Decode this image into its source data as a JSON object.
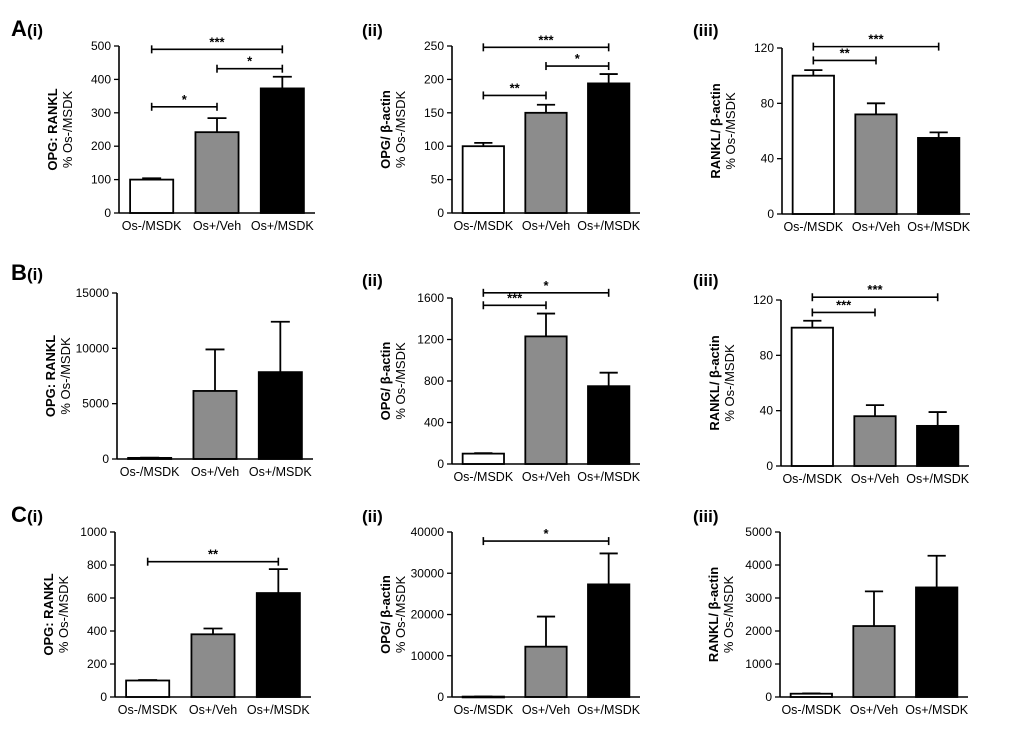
{
  "figure": {
    "row_labels": [
      "A",
      "B",
      "C"
    ],
    "colors": {
      "Os-/MSDK": "#ffffff",
      "Os+/Veh": "#8c8c8c",
      "Os+/MSDK": "#000000"
    }
  },
  "chart_data": [
    {
      "type": "bar",
      "row": "A",
      "panel_label": "(i)",
      "ylabel_bold": "OPG: RANKL",
      "ylabel_normal": "% Os-/MSDK",
      "categories": [
        "Os-/MSDK",
        "Os+/Veh",
        "Os+/MSDK"
      ],
      "values": [
        100,
        242,
        373
      ],
      "errors": [
        4,
        42,
        35
      ],
      "ylim": [
        0,
        500
      ],
      "yticks": [
        0,
        100,
        200,
        300,
        400,
        500
      ],
      "significance": [
        {
          "from": 0,
          "to": 1,
          "y": 318,
          "label": "*"
        },
        {
          "from": 1,
          "to": 2,
          "y": 432,
          "label": "*"
        },
        {
          "from": 0,
          "to": 2,
          "y": 490,
          "label": "***"
        }
      ]
    },
    {
      "type": "bar",
      "row": "A",
      "panel_label": "(ii)",
      "ylabel_bold": "OPG/ β-actin",
      "ylabel_normal": "% Os-/MSDK",
      "categories": [
        "Os-/MSDK",
        "Os+/Veh",
        "Os+/MSDK"
      ],
      "values": [
        100,
        150,
        194
      ],
      "errors": [
        5,
        12,
        14
      ],
      "ylim": [
        0,
        250
      ],
      "yticks": [
        0,
        50,
        100,
        150,
        200,
        250
      ],
      "significance": [
        {
          "from": 0,
          "to": 1,
          "y": 176,
          "label": "**"
        },
        {
          "from": 1,
          "to": 2,
          "y": 220,
          "label": "*"
        },
        {
          "from": 0,
          "to": 2,
          "y": 248,
          "label": "***"
        }
      ]
    },
    {
      "type": "bar",
      "row": "A",
      "panel_label": "(iii)",
      "ylabel_bold": "RANKL/ β-actin",
      "ylabel_normal": "% Os-/MSDK",
      "categories": [
        "Os-/MSDK",
        "Os+/Veh",
        "Os+/MSDK"
      ],
      "values": [
        100,
        72,
        55
      ],
      "errors": [
        4,
        8,
        4
      ],
      "ylim": [
        0,
        120
      ],
      "yticks": [
        0,
        40,
        80,
        120
      ],
      "significance": [
        {
          "from": 0,
          "to": 1,
          "y": 111,
          "label": "**"
        },
        {
          "from": 0,
          "to": 2,
          "y": 121,
          "label": "***"
        }
      ]
    },
    {
      "type": "bar",
      "row": "B",
      "panel_label": "(i)",
      "ylabel_bold": "OPG: RANKL",
      "ylabel_normal": "% Os-/MSDK",
      "categories": [
        "Os-/MSDK",
        "Os+/Veh",
        "Os+/MSDK"
      ],
      "values": [
        100,
        6150,
        7850
      ],
      "errors": [
        20,
        3750,
        4550
      ],
      "ylim": [
        0,
        15000
      ],
      "yticks": [
        0,
        5000,
        10000,
        15000
      ],
      "significance": []
    },
    {
      "type": "bar",
      "row": "B",
      "panel_label": "(ii)",
      "ylabel_bold": "OPG/ β-actin",
      "ylabel_normal": "% Os-/MSDK",
      "categories": [
        "Os-/MSDK",
        "Os+/Veh",
        "Os+/MSDK"
      ],
      "values": [
        100,
        1230,
        750
      ],
      "errors": [
        5,
        220,
        130
      ],
      "ylim": [
        0,
        1600
      ],
      "yticks": [
        0,
        400,
        800,
        1200,
        1600
      ],
      "significance": [
        {
          "from": 0,
          "to": 1,
          "y": 1530,
          "label": "***"
        },
        {
          "from": 0,
          "to": 2,
          "y": 1650,
          "label": "*"
        }
      ]
    },
    {
      "type": "bar",
      "row": "B",
      "panel_label": "(iii)",
      "ylabel_bold": "RANKL/ β-actin",
      "ylabel_normal": "% Os-/MSDK",
      "categories": [
        "Os-/MSDK",
        "Os+/Veh",
        "Os+/MSDK"
      ],
      "values": [
        100,
        36,
        29
      ],
      "errors": [
        5,
        8,
        10
      ],
      "ylim": [
        0,
        120
      ],
      "yticks": [
        0,
        40,
        80,
        120
      ],
      "significance": [
        {
          "from": 0,
          "to": 1,
          "y": 111,
          "label": "***"
        },
        {
          "from": 0,
          "to": 2,
          "y": 122,
          "label": "***"
        }
      ]
    },
    {
      "type": "bar",
      "row": "C",
      "panel_label": "(i)",
      "ylabel_bold": "OPG: RANKL",
      "ylabel_normal": "% Os-/MSDK",
      "categories": [
        "Os-/MSDK",
        "Os+/Veh",
        "Os+/MSDK"
      ],
      "values": [
        100,
        380,
        630
      ],
      "errors": [
        3,
        35,
        145
      ],
      "ylim": [
        0,
        1000
      ],
      "yticks": [
        0,
        200,
        400,
        600,
        800,
        1000
      ],
      "significance": [
        {
          "from": 0,
          "to": 2,
          "y": 820,
          "label": "**"
        }
      ]
    },
    {
      "type": "bar",
      "row": "C",
      "panel_label": "(ii)",
      "ylabel_bold": "OPG/ β-actin",
      "ylabel_normal": "% Os-/MSDK",
      "categories": [
        "Os-/MSDK",
        "Os+/Veh",
        "Os+/MSDK"
      ],
      "values": [
        100,
        12200,
        27300
      ],
      "errors": [
        20,
        7300,
        7500
      ],
      "ylim": [
        0,
        40000
      ],
      "yticks": [
        0,
        10000,
        20000,
        30000,
        40000
      ],
      "significance": [
        {
          "from": 0,
          "to": 2,
          "y": 37800,
          "label": "*"
        }
      ]
    },
    {
      "type": "bar",
      "row": "C",
      "panel_label": "(iii)",
      "ylabel_bold": "RANKL/ β-actin",
      "ylabel_normal": "% Os-/MSDK",
      "categories": [
        "Os-/MSDK",
        "Os+/Veh",
        "Os+/MSDK"
      ],
      "values": [
        100,
        2150,
        3320
      ],
      "errors": [
        10,
        1050,
        960
      ],
      "ylim": [
        0,
        5000
      ],
      "yticks": [
        0,
        1000,
        2000,
        3000,
        4000,
        5000
      ],
      "significance": []
    }
  ]
}
